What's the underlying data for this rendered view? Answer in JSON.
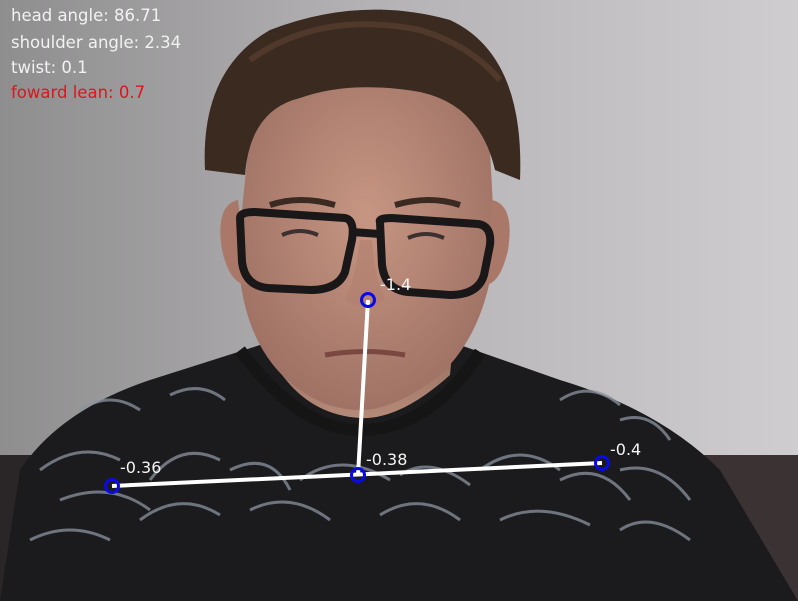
{
  "hud": {
    "head_angle": "head angle: 86.71",
    "shoulder_angle": "shoulder angle: 2.34",
    "twist": "twist: 0.1",
    "forward_lean": "foward lean: 0.7"
  },
  "keypoints": {
    "nose": "-1.4",
    "neck": "-0.38",
    "left_shoulder": "-0.36",
    "right_shoulder": "-0.4"
  },
  "colors": {
    "hud_text": "#f2f2f2",
    "hud_alert": "#e0141e",
    "skeleton_line": "#ffffff",
    "keypoint_marker": "#0a0ae6",
    "label_text": "#f5f5f5"
  }
}
